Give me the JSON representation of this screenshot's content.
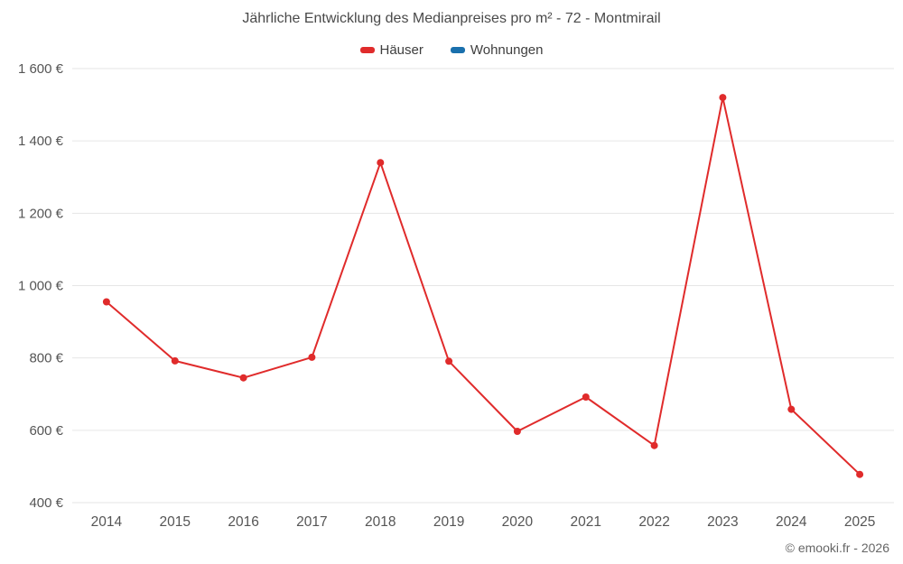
{
  "title": "Jährliche Entwicklung des Medianpreises pro m² - 72 - Montmirail",
  "copyright": "© emooki.fr - 2026",
  "legend": [
    {
      "label": "Häuser",
      "color": "#e02b2b"
    },
    {
      "label": "Wohnungen",
      "color": "#1a70ad"
    }
  ],
  "chart_data": {
    "type": "line",
    "title": "Jährliche Entwicklung des Medianpreises pro m² - 72 - Montmirail",
    "categories": [
      "2014",
      "2015",
      "2016",
      "2017",
      "2018",
      "2019",
      "2020",
      "2021",
      "2022",
      "2023",
      "2024",
      "2025"
    ],
    "series": [
      {
        "name": "Häuser",
        "color": "#e02b2b",
        "values": [
          955,
          792,
          745,
          802,
          1340,
          791,
          597,
          692,
          558,
          1520,
          658,
          478
        ]
      },
      {
        "name": "Wohnungen",
        "color": "#1a70ad",
        "values": null
      }
    ],
    "ylim": [
      400,
      1600
    ],
    "ytick_step": 200,
    "ytick_labels": [
      "400 €",
      "600 €",
      "800 €",
      "1 000 €",
      "1 200 €",
      "1 400 €",
      "1 600 €"
    ],
    "grid": true,
    "legend_position": "top",
    "marker": "circle",
    "marker_radius": 4,
    "line_width": 2
  }
}
